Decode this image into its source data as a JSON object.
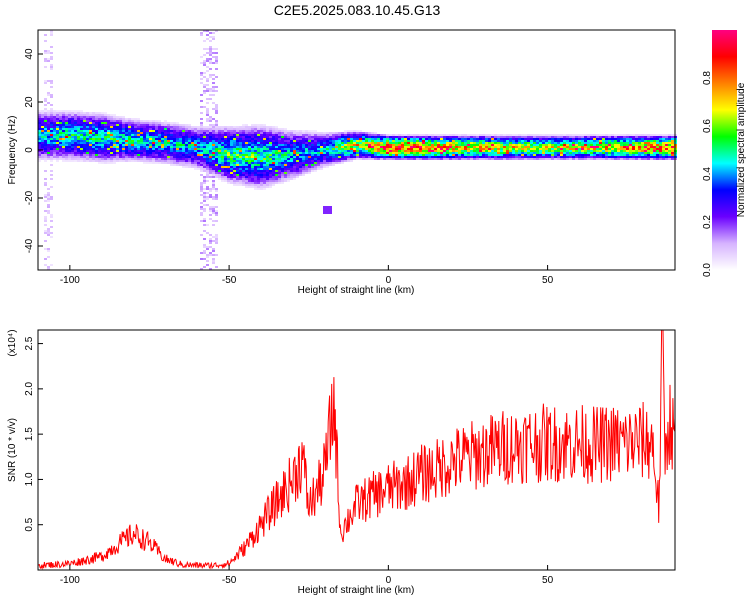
{
  "title": "C2E5.2025.083.10.45.G13",
  "chart_data": [
    {
      "type": "heatmap",
      "xlabel": "Height of straight line (km)",
      "ylabel": "Frequency (Hz)",
      "xlim": [
        -110,
        90
      ],
      "ylim": [
        -50,
        50
      ],
      "xticks": [
        -100,
        -50,
        0,
        50
      ],
      "yticks": [
        -40,
        -20,
        0,
        20,
        40
      ],
      "colorbar": {
        "label": "Normalized spectral amplitude",
        "range": [
          0,
          1
        ],
        "ticks": [
          "0.0",
          "0.2",
          "0.4",
          "0.6",
          "0.8"
        ],
        "tick_values": [
          0.0,
          0.2,
          0.4,
          0.6,
          0.8
        ],
        "colors": [
          "#ffffff",
          "#d6b3ff",
          "#6a00ff",
          "#0000ff",
          "#00ffff",
          "#00ff00",
          "#ffff00",
          "#ff8000",
          "#ff0000",
          "#ff0080"
        ]
      },
      "ridge": {
        "x": [
          -110,
          -100,
          -90,
          -80,
          -70,
          -60,
          -50,
          -40,
          -30,
          -20,
          -10,
          0,
          10,
          20,
          30,
          40,
          50,
          60,
          70,
          80,
          90
        ],
        "freq_center": [
          6,
          6,
          5,
          4,
          3,
          1,
          -2,
          -3,
          -2,
          0,
          2,
          1,
          1,
          1,
          1,
          1,
          1,
          1,
          1,
          1,
          1
        ],
        "half_width": [
          7,
          7,
          7,
          6,
          6,
          6,
          8,
          9,
          7,
          5,
          4,
          3.5,
          3.5,
          3.5,
          3.5,
          3.5,
          3.5,
          3.5,
          3.5,
          3.5,
          3.5
        ],
        "peak_amplitude": [
          0.45,
          0.5,
          0.5,
          0.5,
          0.45,
          0.45,
          0.55,
          0.55,
          0.45,
          0.45,
          0.7,
          0.9,
          0.9,
          0.8,
          0.75,
          0.7,
          0.65,
          0.7,
          0.75,
          0.8,
          0.85
        ]
      },
      "noise_columns": [
        {
          "x": -107,
          "range": [
            -50,
            50
          ],
          "amplitude": 0.08
        },
        {
          "x": -58,
          "range": [
            -50,
            50
          ],
          "amplitude": 0.1
        },
        {
          "x": -55,
          "range": [
            -50,
            50
          ],
          "amplitude": 0.1
        }
      ],
      "isolated_blobs": [
        {
          "x": -19,
          "y": -25,
          "amplitude": 0.2
        }
      ]
    },
    {
      "type": "line",
      "xlabel": "Height of straight line (km)",
      "ylabel": "SNR (10 * v/v)",
      "y_multiplier_label": "(x10⁴)",
      "xlim": [
        -110,
        90
      ],
      "ylim": [
        0,
        2.65
      ],
      "xticks": [
        -100,
        -50,
        0,
        50
      ],
      "yticks": [
        0.5,
        1.0,
        1.5,
        2.0,
        2.5
      ],
      "ytick_labels": [
        "0.5",
        "1.0",
        "1.5",
        "2.0",
        "2.5"
      ],
      "series": [
        {
          "color": "#ff0000",
          "x": [
            -110,
            -100,
            -90,
            -85,
            -80,
            -75,
            -70,
            -65,
            -60,
            -55,
            -50,
            -45,
            -40,
            -35,
            -30,
            -27,
            -25,
            -22,
            -20,
            -17,
            -15,
            -12,
            -10,
            -5,
            0,
            5,
            10,
            15,
            20,
            25,
            30,
            35,
            40,
            45,
            50,
            55,
            60,
            65,
            70,
            75,
            80,
            83,
            85,
            86,
            87,
            88,
            90
          ],
          "y": [
            0.05,
            0.07,
            0.15,
            0.28,
            0.4,
            0.3,
            0.12,
            0.06,
            0.05,
            0.05,
            0.07,
            0.25,
            0.5,
            0.75,
            1.0,
            1.25,
            0.7,
            0.9,
            1.1,
            1.85,
            0.4,
            0.6,
            0.72,
            0.82,
            0.9,
            0.95,
            1.05,
            1.1,
            1.2,
            1.25,
            1.3,
            1.35,
            1.38,
            1.4,
            1.4,
            1.4,
            1.4,
            1.38,
            1.4,
            1.4,
            1.42,
            1.4,
            0.65,
            2.6,
            1.2,
            1.7,
            1.4
          ]
        }
      ]
    }
  ]
}
